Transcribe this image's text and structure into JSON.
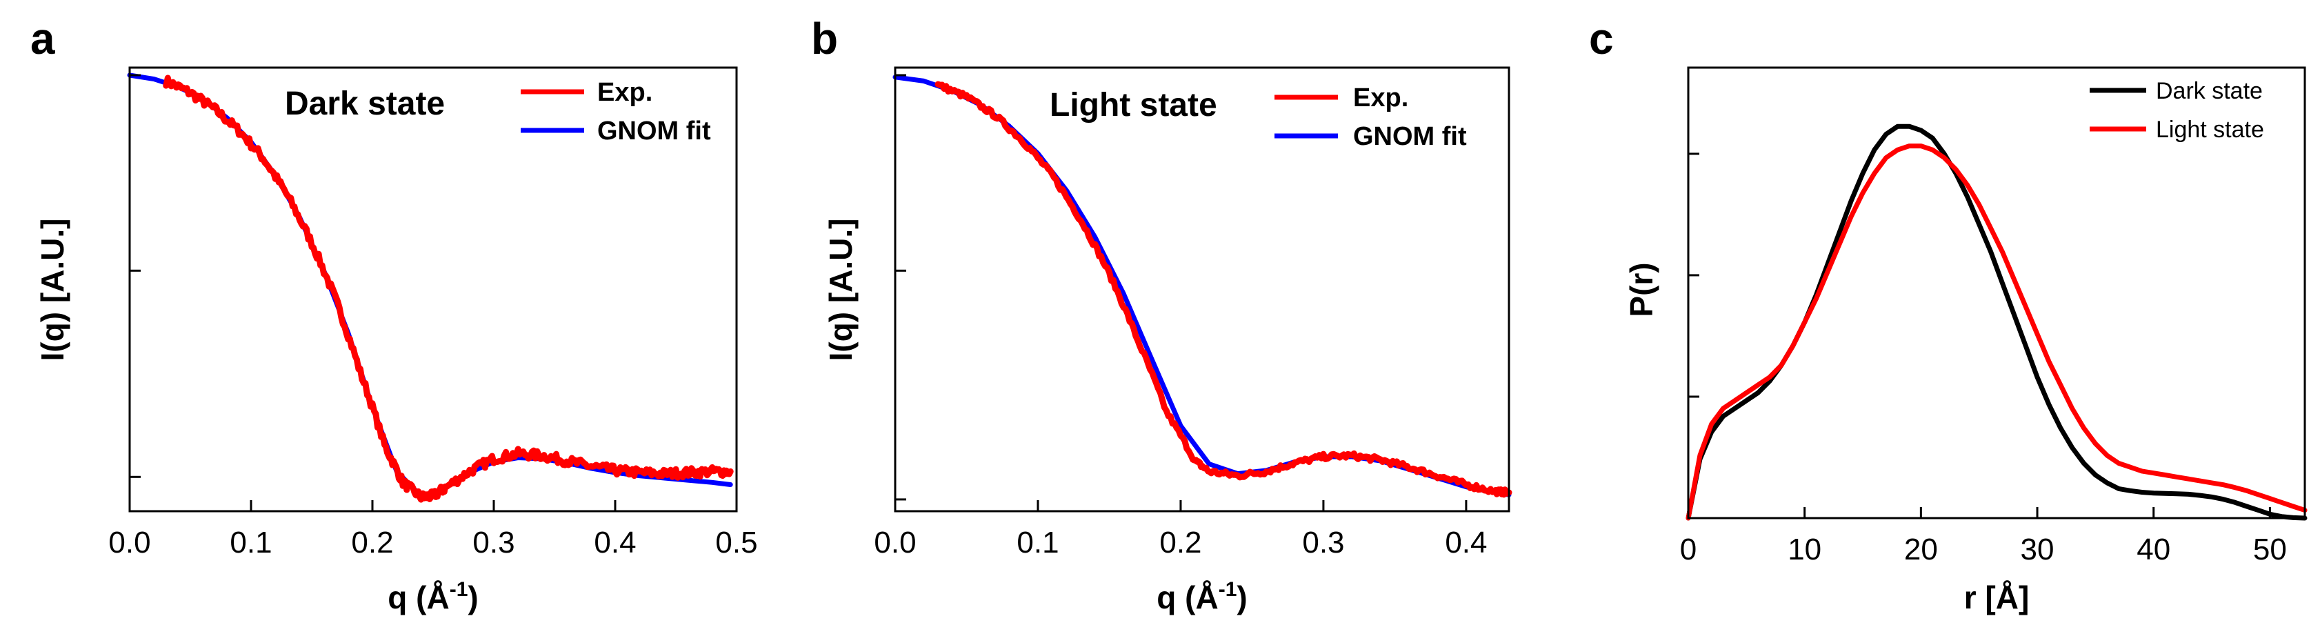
{
  "chart_data": [
    {
      "panel": "a",
      "type": "line",
      "yscale": "log",
      "annotation": "Dark state",
      "xlabel": "q (Å",
      "xlabel_sup": "-1",
      "xlabel_end": ")",
      "ylabel": "I(q) [A.U.]",
      "xlim": [
        0.0,
        0.5
      ],
      "ylim": [
        0.32,
        1.02
      ],
      "xticks": [
        0.0,
        0.1,
        0.2,
        0.3,
        0.4,
        0.5
      ],
      "xtick_labels": [
        "0.0",
        "0.1",
        "0.2",
        "0.3",
        "0.4",
        "0.5"
      ],
      "yticks": [
        1.0,
        0.6,
        0.35
      ],
      "legend": {
        "position": "top-right"
      },
      "series": [
        {
          "name": "Exp.",
          "color": "#ff0000",
          "noise": 0.012,
          "x": [
            0.03,
            0.05,
            0.07,
            0.09,
            0.11,
            0.13,
            0.15,
            0.17,
            0.19,
            0.21,
            0.225,
            0.24,
            0.25,
            0.26,
            0.28,
            0.3,
            0.32,
            0.34,
            0.36,
            0.38,
            0.4,
            0.42,
            0.44,
            0.46,
            0.48,
            0.495
          ],
          "y": [
            0.985,
            0.955,
            0.915,
            0.865,
            0.805,
            0.73,
            0.645,
            0.555,
            0.46,
            0.38,
            0.345,
            0.332,
            0.333,
            0.34,
            0.355,
            0.367,
            0.372,
            0.37,
            0.365,
            0.36,
            0.356,
            0.354,
            0.353,
            0.354,
            0.355,
            0.355
          ]
        },
        {
          "name": "GNOM fit",
          "color": "#0000ff",
          "noise": 0,
          "x": [
            0.0,
            0.02,
            0.04,
            0.06,
            0.08,
            0.1,
            0.12,
            0.14,
            0.16,
            0.18,
            0.2,
            0.22,
            0.24,
            0.25,
            0.26,
            0.28,
            0.3,
            0.32,
            0.34,
            0.36,
            0.38,
            0.4,
            0.42,
            0.44,
            0.46,
            0.48,
            0.495
          ],
          "y": [
            1.0,
            0.99,
            0.97,
            0.94,
            0.895,
            0.84,
            0.77,
            0.69,
            0.6,
            0.51,
            0.42,
            0.355,
            0.333,
            0.334,
            0.34,
            0.354,
            0.364,
            0.368,
            0.367,
            0.363,
            0.358,
            0.354,
            0.351,
            0.349,
            0.347,
            0.345,
            0.343
          ]
        }
      ]
    },
    {
      "panel": "b",
      "type": "line",
      "yscale": "log",
      "annotation": "Light state",
      "xlabel": "q (Å",
      "xlabel_sup": "-1",
      "xlabel_end": ")",
      "ylabel": "I(q) [A.U.]",
      "xlim": [
        0.0,
        0.43
      ],
      "ylim": [
        0.32,
        1.02
      ],
      "xticks": [
        0.0,
        0.1,
        0.2,
        0.3,
        0.4
      ],
      "xtick_labels": [
        "0.0",
        "0.1",
        "0.2",
        "0.3",
        "0.4"
      ],
      "yticks": [
        1.0,
        0.6,
        0.33
      ],
      "legend": {
        "position": "top-right"
      },
      "series": [
        {
          "name": "Exp.",
          "color": "#ff0000",
          "noise": 0.007,
          "x": [
            0.03,
            0.05,
            0.07,
            0.09,
            0.11,
            0.13,
            0.15,
            0.17,
            0.19,
            0.21,
            0.22,
            0.24,
            0.26,
            0.28,
            0.3,
            0.32,
            0.34,
            0.36,
            0.38,
            0.4,
            0.42,
            0.43
          ],
          "y": [
            0.975,
            0.945,
            0.9,
            0.84,
            0.77,
            0.685,
            0.595,
            0.5,
            0.415,
            0.365,
            0.355,
            0.351,
            0.355,
            0.363,
            0.369,
            0.37,
            0.366,
            0.359,
            0.351,
            0.343,
            0.337,
            0.336
          ]
        },
        {
          "name": "GNOM fit",
          "color": "#0000ff",
          "noise": 0,
          "x": [
            0.0,
            0.02,
            0.04,
            0.06,
            0.08,
            0.1,
            0.12,
            0.14,
            0.16,
            0.18,
            0.2,
            0.22,
            0.24,
            0.26,
            0.28,
            0.3,
            0.32,
            0.34,
            0.36,
            0.38,
            0.4,
            0.42,
            0.43
          ],
          "y": [
            0.995,
            0.985,
            0.96,
            0.925,
            0.875,
            0.815,
            0.74,
            0.655,
            0.565,
            0.475,
            0.4,
            0.362,
            0.353,
            0.356,
            0.364,
            0.369,
            0.369,
            0.365,
            0.357,
            0.349,
            0.341,
            0.336,
            0.334
          ]
        }
      ]
    },
    {
      "panel": "c",
      "type": "line",
      "yscale": "linear",
      "xlabel": "r [Å]",
      "ylabel": "P(r)",
      "xlim": [
        0,
        53
      ],
      "ylim": [
        0,
        1.15
      ],
      "xticks": [
        0,
        10,
        20,
        30,
        40,
        50
      ],
      "xtick_labels": [
        "0",
        "10",
        "20",
        "30",
        "40",
        "50"
      ],
      "yticks": [
        0.0,
        0.31,
        0.62,
        0.93
      ],
      "legend": {
        "position": "top-right"
      },
      "series": [
        {
          "name": "Dark state",
          "color": "#000000",
          "noise": 0,
          "x": [
            0,
            1,
            2,
            3,
            4,
            5,
            6,
            7,
            8,
            9,
            10,
            11,
            12,
            13,
            14,
            15,
            16,
            17,
            18,
            19,
            20,
            21,
            22,
            23,
            24,
            25,
            26,
            27,
            28,
            29,
            30,
            31,
            32,
            33,
            34,
            35,
            36,
            37,
            38,
            39,
            40,
            41,
            42,
            43,
            44,
            45,
            46,
            47,
            48,
            49,
            50,
            51,
            52,
            53
          ],
          "y": [
            0,
            0.15,
            0.22,
            0.26,
            0.28,
            0.3,
            0.32,
            0.35,
            0.39,
            0.44,
            0.5,
            0.57,
            0.65,
            0.73,
            0.81,
            0.88,
            0.94,
            0.98,
            1.0,
            1.0,
            0.99,
            0.97,
            0.93,
            0.88,
            0.82,
            0.75,
            0.68,
            0.6,
            0.52,
            0.44,
            0.36,
            0.29,
            0.23,
            0.18,
            0.14,
            0.11,
            0.09,
            0.075,
            0.07,
            0.066,
            0.064,
            0.063,
            0.062,
            0.061,
            0.058,
            0.054,
            0.048,
            0.04,
            0.03,
            0.02,
            0.01,
            0.004,
            0.001,
            0
          ]
        },
        {
          "name": "Light state",
          "color": "#ff0000",
          "noise": 0,
          "x": [
            0,
            1,
            2,
            3,
            4,
            5,
            6,
            7,
            8,
            9,
            10,
            11,
            12,
            13,
            14,
            15,
            16,
            17,
            18,
            19,
            20,
            21,
            22,
            23,
            24,
            25,
            26,
            27,
            28,
            29,
            30,
            31,
            32,
            33,
            34,
            35,
            36,
            37,
            38,
            39,
            40,
            41,
            42,
            43,
            44,
            45,
            46,
            47,
            48,
            49,
            50,
            51,
            52,
            53
          ],
          "y": [
            0,
            0.16,
            0.24,
            0.28,
            0.3,
            0.32,
            0.34,
            0.36,
            0.39,
            0.44,
            0.5,
            0.56,
            0.63,
            0.7,
            0.77,
            0.83,
            0.88,
            0.92,
            0.94,
            0.95,
            0.95,
            0.94,
            0.92,
            0.89,
            0.85,
            0.8,
            0.74,
            0.68,
            0.61,
            0.54,
            0.47,
            0.4,
            0.34,
            0.28,
            0.23,
            0.19,
            0.16,
            0.14,
            0.13,
            0.12,
            0.115,
            0.11,
            0.105,
            0.1,
            0.095,
            0.09,
            0.085,
            0.078,
            0.07,
            0.06,
            0.05,
            0.04,
            0.03,
            0.02
          ]
        }
      ]
    }
  ]
}
